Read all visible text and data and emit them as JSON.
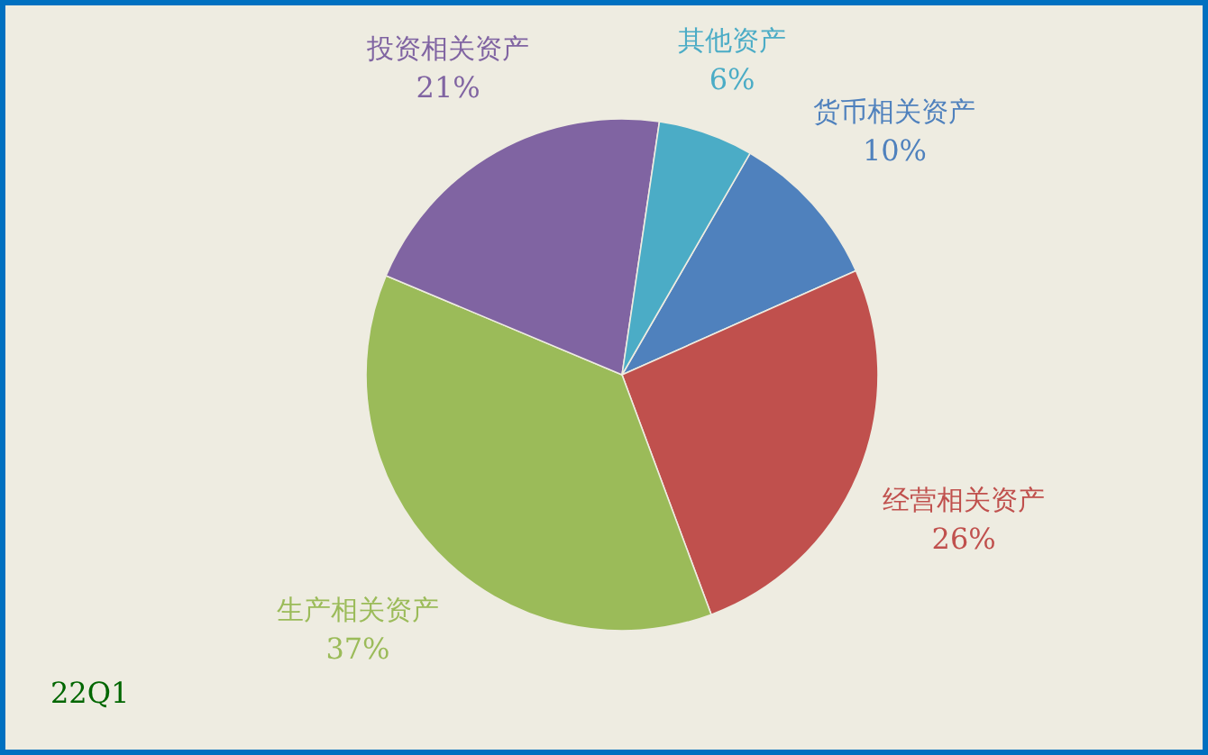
{
  "chart_data": {
    "type": "pie",
    "categories": [
      "货币相关资产",
      "经营相关资产",
      "生产相关资产",
      "投资相关资产",
      "其他资产"
    ],
    "values": [
      10,
      26,
      37,
      21,
      6
    ],
    "colors": [
      "#4f81bd",
      "#c0504d",
      "#9bbb59",
      "#8064a2",
      "#4bacc6"
    ],
    "value_labels": [
      "10%",
      "26%",
      "37%",
      "21%",
      "6%"
    ],
    "annotations": [
      "22Q1"
    ]
  }
}
